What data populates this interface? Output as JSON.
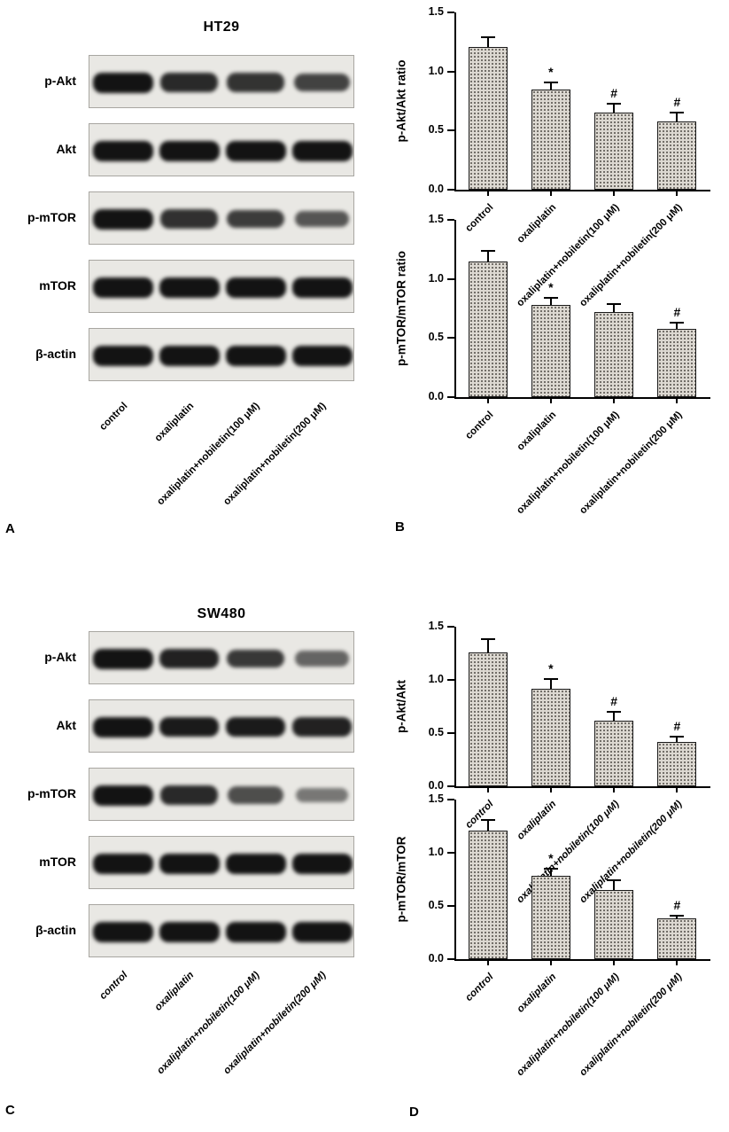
{
  "panels": {
    "A": {
      "letter": "A"
    },
    "B": {
      "letter": "B"
    },
    "C": {
      "letter": "C"
    },
    "D": {
      "letter": "D"
    }
  },
  "lane_labels": [
    "control",
    "oxaliplatin",
    "oxaliplatin+nobiletin(100 μM)",
    "oxaliplatin+nobiletin(200 μM)"
  ],
  "blots": {
    "HT29": {
      "title": "HT29",
      "rows": [
        {
          "label": "p-Akt",
          "intensities": [
            1.0,
            0.85,
            0.78,
            0.68
          ]
        },
        {
          "label": "Akt",
          "intensities": [
            1.0,
            1.0,
            1.0,
            1.0
          ]
        },
        {
          "label": "p-mTOR",
          "intensities": [
            1.0,
            0.8,
            0.72,
            0.55
          ]
        },
        {
          "label": "mTOR",
          "intensities": [
            1.0,
            1.0,
            1.0,
            1.0
          ]
        },
        {
          "label": "β-actin",
          "intensities": [
            1.0,
            1.0,
            1.0,
            1.0
          ]
        }
      ]
    },
    "SW480": {
      "title": "SW480",
      "rows": [
        {
          "label": "p-Akt",
          "intensities": [
            1.0,
            0.9,
            0.75,
            0.45
          ]
        },
        {
          "label": "Akt",
          "intensities": [
            1.0,
            0.95,
            0.95,
            0.9
          ]
        },
        {
          "label": "p-mTOR",
          "intensities": [
            1.0,
            0.85,
            0.6,
            0.32
          ]
        },
        {
          "label": "mTOR",
          "intensities": [
            1.0,
            1.0,
            1.0,
            1.0
          ]
        },
        {
          "label": "β-actin",
          "intensities": [
            1.0,
            1.0,
            1.0,
            1.0
          ]
        }
      ]
    }
  },
  "chart_data": [
    {
      "id": "B-top",
      "panel": "B",
      "cell_line": "HT29",
      "type": "bar",
      "ylabel": "p-Akt/Akt ratio",
      "categories": [
        "control",
        "oxaliplatin",
        "oxaliplatin+nobiletin(100 μM)",
        "oxaliplatin+nobiletin(200 μM)"
      ],
      "values": [
        1.21,
        0.85,
        0.65,
        0.58
      ],
      "errors": [
        0.08,
        0.06,
        0.08,
        0.07
      ],
      "annotations": [
        "",
        "*",
        "#",
        "#"
      ],
      "ylim": [
        0,
        1.5
      ],
      "yticks": [
        0,
        0.5,
        1.0,
        1.5
      ],
      "ytick_labels": [
        "0.0",
        "0.5",
        "1.0",
        "1.5"
      ]
    },
    {
      "id": "B-bottom",
      "panel": "B",
      "cell_line": "HT29",
      "type": "bar",
      "ylabel": "p-mTOR/mTOR ratio",
      "categories": [
        "control",
        "oxaliplatin",
        "oxaliplatin+nobiletin(100 μM)",
        "oxaliplatin+nobiletin(200 μM)"
      ],
      "values": [
        1.15,
        0.78,
        0.72,
        0.58
      ],
      "errors": [
        0.09,
        0.06,
        0.07,
        0.05
      ],
      "annotations": [
        "",
        "*",
        "",
        "#"
      ],
      "ylim": [
        0,
        1.5
      ],
      "yticks": [
        0,
        0.5,
        1.0,
        1.5
      ],
      "ytick_labels": [
        "0.0",
        "0.5",
        "1.0",
        "1.5"
      ]
    },
    {
      "id": "D-top",
      "panel": "D",
      "cell_line": "SW480",
      "type": "bar",
      "ylabel": "p-Akt/Akt",
      "categories": [
        "control",
        "oxaliplatin",
        "oxaliplatin+nobiletin(100 μM)",
        "oxaliplatin+nobiletin(200 μM)"
      ],
      "values": [
        1.26,
        0.92,
        0.62,
        0.42
      ],
      "errors": [
        0.12,
        0.09,
        0.08,
        0.05
      ],
      "annotations": [
        "",
        "*",
        "#",
        "#"
      ],
      "ylim": [
        0,
        1.5
      ],
      "yticks": [
        0,
        0.5,
        1.0,
        1.5
      ],
      "ytick_labels": [
        "0.0",
        "0.5",
        "1.0",
        "1.5"
      ]
    },
    {
      "id": "D-bottom",
      "panel": "D",
      "cell_line": "SW480",
      "type": "bar",
      "ylabel": "p-mTOR/mTOR",
      "categories": [
        "control",
        "oxaliplatin",
        "oxaliplatin+nobiletin(100 μM)",
        "oxaliplatin+nobiletin(200 μM)"
      ],
      "values": [
        1.21,
        0.78,
        0.65,
        0.38
      ],
      "errors": [
        0.1,
        0.07,
        0.09,
        0.03
      ],
      "annotations": [
        "",
        "*",
        "",
        "#"
      ],
      "ylim": [
        0,
        1.5
      ],
      "yticks": [
        0,
        0.5,
        1.0,
        1.5
      ],
      "ytick_labels": [
        "0.0",
        "0.5",
        "1.0",
        "1.5"
      ]
    }
  ],
  "colors": {
    "background": "#ffffff",
    "axis": "#000000",
    "bar_fill": "#dcd8d1",
    "bar_border": "#1a1a1a",
    "blot_background": "#e9e8e4",
    "band": "#131313"
  }
}
